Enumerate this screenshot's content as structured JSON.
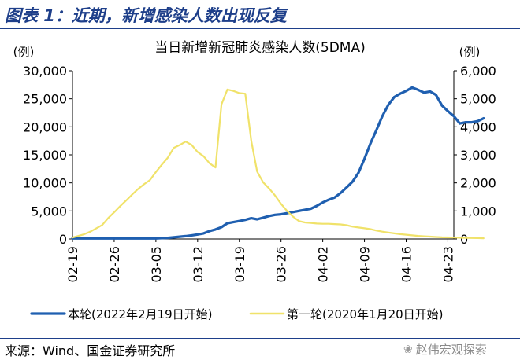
{
  "header": {
    "title": "图表 1：近期，新增感染人数出现反复"
  },
  "chart_data": {
    "type": "line",
    "title": "当日新增新冠肺炎感染人数(5DMA)",
    "y_left_unit": "(例)",
    "y_right_unit": "(例)",
    "y_left_lim": [
      0,
      30000
    ],
    "y_left_ticks": [
      "0",
      "5,000",
      "10,000",
      "15,000",
      "20,000",
      "25,000",
      "30,000"
    ],
    "y_right_lim": [
      0,
      6000
    ],
    "y_right_ticks": [
      "0",
      "1,000",
      "2,000",
      "3,000",
      "4,000",
      "5,000",
      "6,000"
    ],
    "x_ticks": [
      "02-19",
      "02-26",
      "03-05",
      "03-12",
      "03-19",
      "03-26",
      "04-02",
      "04-09",
      "04-16",
      "04-23"
    ],
    "x_range": [
      0,
      64
    ],
    "series": [
      {
        "name": "本轮(2022年2月19日开始)",
        "color": "#1f5fb0",
        "axis": "left",
        "values": [
          100,
          100,
          100,
          100,
          100,
          100,
          100,
          100,
          100,
          100,
          100,
          100,
          100,
          100,
          100,
          150,
          200,
          300,
          400,
          500,
          650,
          800,
          1000,
          1400,
          1700,
          2100,
          2800,
          3000,
          3200,
          3400,
          3700,
          3500,
          3800,
          4100,
          4300,
          4400,
          4600,
          4800,
          5000,
          5200,
          5400,
          5900,
          6500,
          7000,
          7400,
          8200,
          9200,
          10200,
          11800,
          14300,
          17000,
          19400,
          21900,
          23900,
          25300,
          25900,
          26400,
          27000,
          26600,
          26100,
          26300,
          25700,
          23800,
          22800,
          21900,
          20600,
          20800,
          20800,
          21000,
          21500
        ]
      },
      {
        "name": "第一轮(2020年1月20日开始)",
        "color": "#f0e26a",
        "axis": "right",
        "values": [
          50,
          110,
          170,
          260,
          380,
          500,
          750,
          950,
          1170,
          1370,
          1580,
          1780,
          1950,
          2100,
          2390,
          2650,
          2900,
          3250,
          3350,
          3470,
          3350,
          3100,
          2950,
          2700,
          2550,
          4800,
          5330,
          5280,
          5200,
          5180,
          3500,
          2400,
          2020,
          1800,
          1550,
          1250,
          1000,
          800,
          640,
          590,
          570,
          550,
          540,
          540,
          530,
          520,
          490,
          440,
          410,
          380,
          350,
          300,
          260,
          230,
          200,
          170,
          150,
          130,
          110,
          95,
          85,
          70,
          60,
          55,
          50,
          45,
          40,
          35,
          30,
          25
        ]
      }
    ]
  },
  "footer": {
    "source": "来源：Wind、国金证券研究所",
    "watermark": "赵伟宏观探索",
    "watermark_icon": "wechat-icon"
  }
}
